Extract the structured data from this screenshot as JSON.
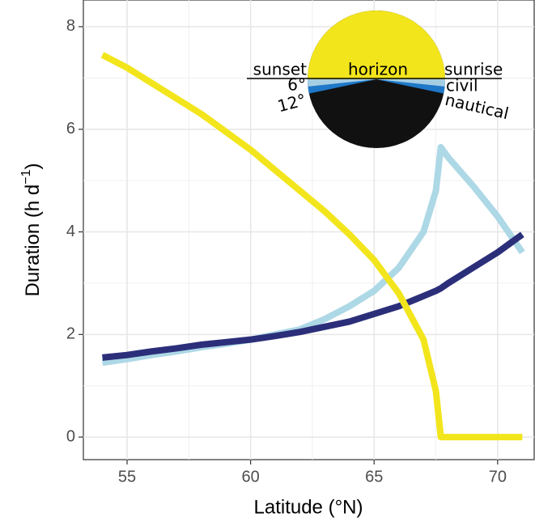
{
  "chart_data": {
    "type": "line",
    "xlabel": "Latitude (°N)",
    "ylabel": "Duration (h d",
    "ylabel_sup": "−1",
    "ylabel_end": ")",
    "x": [
      54,
      55,
      56,
      57,
      58,
      59,
      60,
      61,
      62,
      63,
      64,
      65,
      66,
      67,
      67.5,
      67.7,
      68,
      69,
      70,
      71
    ],
    "series": [
      {
        "color": "#add8e6",
        "values": [
          1.45,
          1.52,
          1.6,
          1.67,
          1.75,
          1.82,
          1.9,
          2.0,
          2.1,
          2.3,
          2.55,
          2.85,
          3.3,
          4.0,
          4.8,
          5.65,
          5.45,
          4.9,
          4.3,
          3.6
        ]
      },
      {
        "color": "#2b2f7a",
        "values": [
          1.55,
          1.6,
          1.67,
          1.73,
          1.8,
          1.85,
          1.9,
          1.97,
          2.05,
          2.15,
          2.25,
          2.4,
          2.55,
          2.75,
          2.85,
          2.9,
          3.0,
          3.3,
          3.6,
          3.95
        ]
      },
      {
        "color": "#f2e51c",
        "values": [
          7.45,
          7.2,
          6.9,
          6.6,
          6.3,
          5.95,
          5.6,
          5.2,
          4.8,
          4.4,
          3.95,
          3.45,
          2.8,
          1.9,
          0.9,
          0,
          0,
          0,
          0,
          0
        ]
      }
    ],
    "xlim": [
      53.23,
      71.48
    ],
    "ylim": [
      -0.44,
      8.52
    ],
    "xticks": [
      55,
      60,
      65,
      70
    ],
    "yticks": [
      0,
      2,
      4,
      6,
      8
    ],
    "xminor": [
      57.5,
      62.5,
      67.5
    ],
    "yminor": [
      1,
      3,
      5,
      7
    ],
    "grid": true,
    "inset": {
      "horizon": "horizon",
      "sunset": "sunset",
      "sunrise": "sunrise",
      "civil_angle": "6°",
      "nautical_angle": "12°",
      "civil": "civil",
      "nautical": "nautical"
    }
  }
}
